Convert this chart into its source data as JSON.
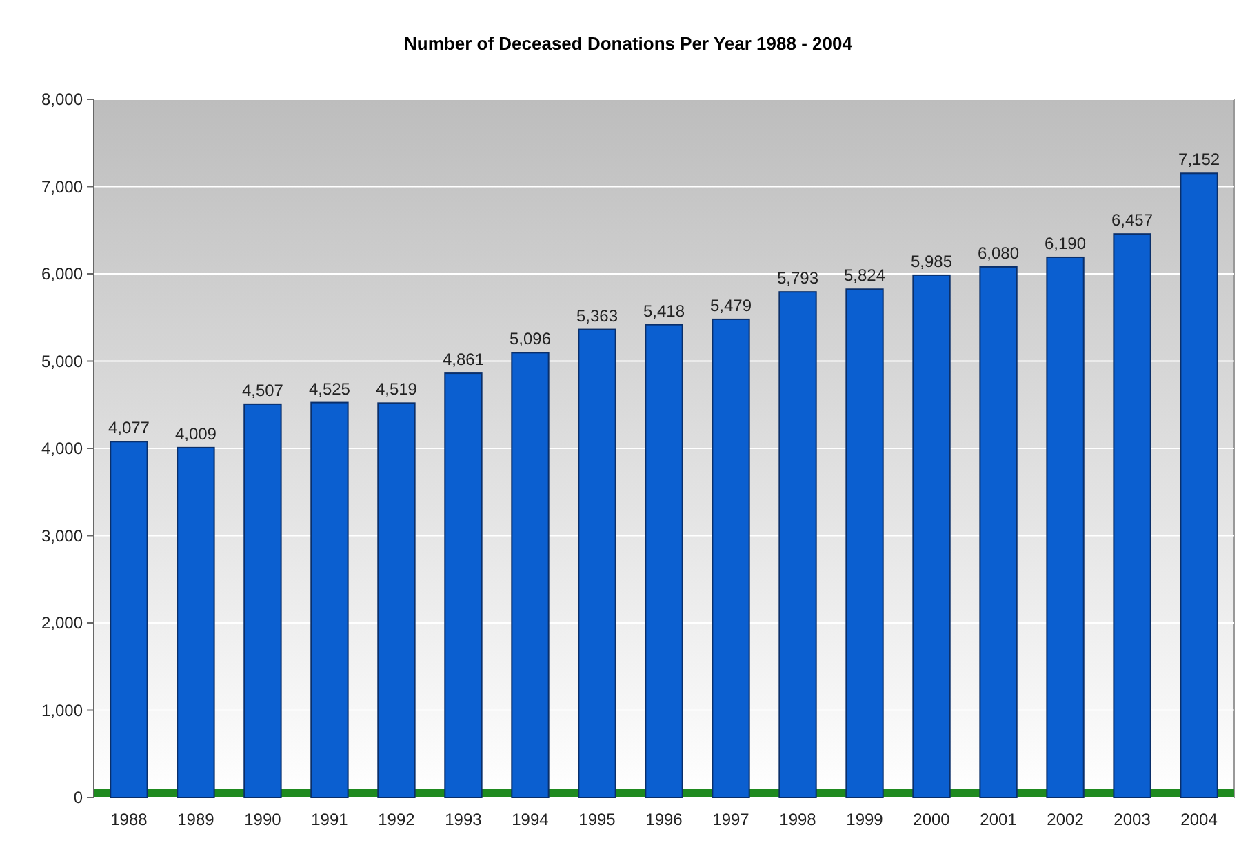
{
  "chart_data": {
    "type": "bar",
    "title": "Number of Deceased Donations Per Year 1988 - 2004",
    "categories": [
      "1988",
      "1989",
      "1990",
      "1991",
      "1992",
      "1993",
      "1994",
      "1995",
      "1996",
      "1997",
      "1998",
      "1999",
      "2000",
      "2001",
      "2002",
      "2003",
      "2004"
    ],
    "values": [
      4077,
      4009,
      4507,
      4525,
      4519,
      4861,
      5096,
      5363,
      5418,
      5479,
      5793,
      5824,
      5985,
      6080,
      6190,
      6457,
      7152
    ],
    "value_labels": [
      "4,077",
      "4,009",
      "4,507",
      "4,525",
      "4,519",
      "4,861",
      "5,096",
      "5,363",
      "5,418",
      "5,479",
      "5,793",
      "5,824",
      "5,985",
      "6,080",
      "6,190",
      "6,457",
      "7,152"
    ],
    "color": "#0b5fd0",
    "ylim": [
      0,
      8000
    ],
    "yticks": [
      {
        "value": 0,
        "label": "0"
      },
      {
        "value": 1000,
        "label": "1,000"
      },
      {
        "value": 2000,
        "label": "2,000"
      },
      {
        "value": 3000,
        "label": "3,000"
      },
      {
        "value": 4000,
        "label": "4,000"
      },
      {
        "value": 5000,
        "label": "5,000"
      },
      {
        "value": 6000,
        "label": "6,000"
      },
      {
        "value": 7000,
        "label": "7,000"
      },
      {
        "value": 8000,
        "label": "8,000"
      }
    ],
    "grid": "y"
  }
}
